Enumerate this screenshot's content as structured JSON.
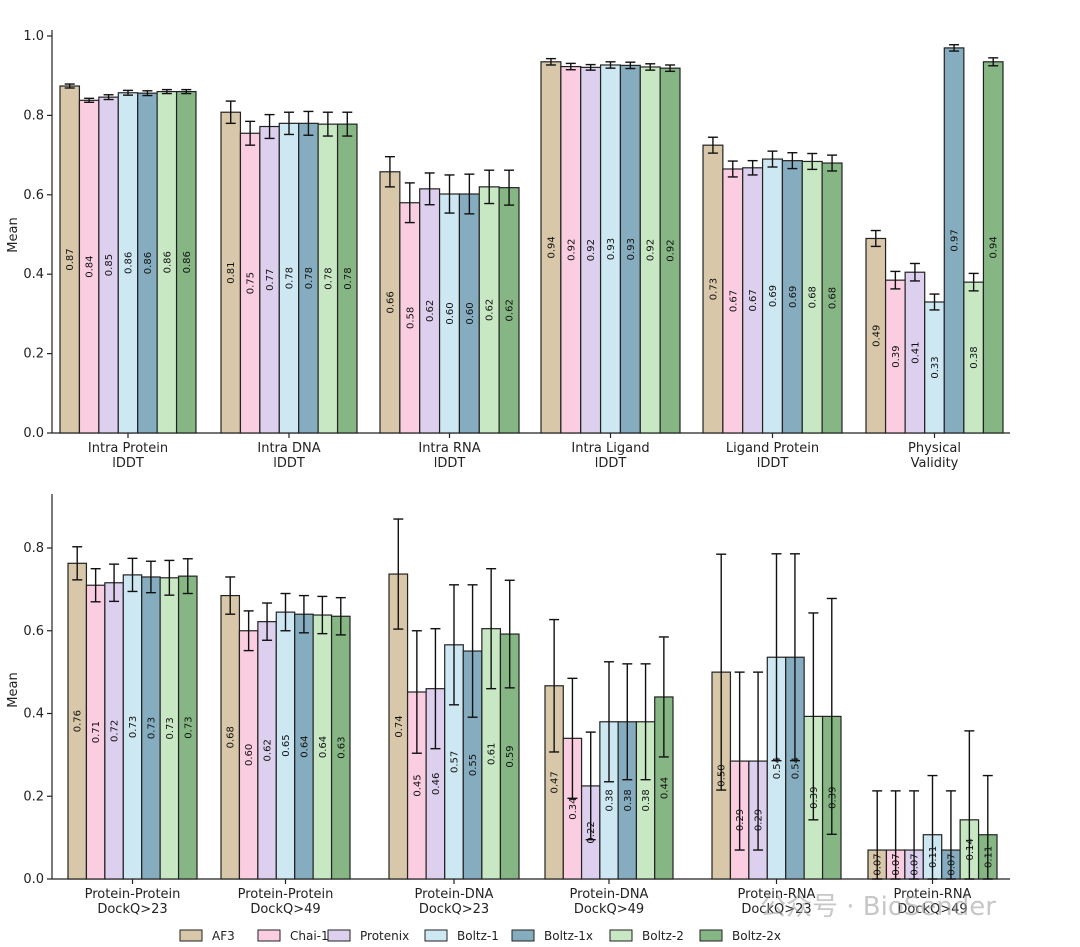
{
  "legend": [
    "AF3",
    "Chai-1",
    "Protenix",
    "Boltz-1",
    "Boltz-1x",
    "Boltz-2",
    "Boltz-2x"
  ],
  "colors": [
    "#d8c7a8",
    "#fbcde0",
    "#ddd0ee",
    "#cde8f2",
    "#86adbf",
    "#c8e8c4",
    "#85b684"
  ],
  "watermark": "公众号 · BioSender",
  "chart_data": [
    {
      "type": "bar",
      "ylabel": "Mean",
      "ylim": [
        0,
        1.0
      ],
      "yticks": [
        "0.0",
        "0.2",
        "0.4",
        "0.6",
        "0.8",
        "1.0"
      ],
      "categories": [
        [
          "Intra Protein",
          "lDDT"
        ],
        [
          "Intra DNA",
          "lDDT"
        ],
        [
          "Intra RNA",
          "lDDT"
        ],
        [
          "Intra Ligand",
          "lDDT"
        ],
        [
          "Ligand Protein",
          "lDDT"
        ],
        [
          "Physical",
          "Validity"
        ]
      ],
      "series": [
        {
          "name": "AF3",
          "values": [
            0.874,
            0.808,
            0.658,
            0.935,
            0.725,
            0.49
          ],
          "labels": [
            "0.87",
            "0.81",
            "0.66",
            "0.94",
            "0.73",
            "0.49"
          ]
        },
        {
          "name": "Chai-1",
          "values": [
            0.838,
            0.755,
            0.58,
            0.923,
            0.665,
            0.385
          ],
          "labels": [
            "0.84",
            "0.75",
            "0.58",
            "0.92",
            "0.67",
            "0.39"
          ]
        },
        {
          "name": "Protenix",
          "values": [
            0.846,
            0.772,
            0.615,
            0.921,
            0.668,
            0.405
          ],
          "labels": [
            "0.85",
            "0.77",
            "0.62",
            "0.92",
            "0.67",
            "0.41"
          ]
        },
        {
          "name": "Boltz-1",
          "values": [
            0.857,
            0.78,
            0.602,
            0.927,
            0.69,
            0.33
          ],
          "labels": [
            "0.86",
            "0.78",
            "0.60",
            "0.93",
            "0.69",
            "0.33"
          ]
        },
        {
          "name": "Boltz-1x",
          "values": [
            0.856,
            0.78,
            0.602,
            0.926,
            0.686,
            0.97
          ],
          "labels": [
            "0.86",
            "0.78",
            "0.60",
            "0.93",
            "0.69",
            "0.97"
          ]
        },
        {
          "name": "Boltz-2",
          "values": [
            0.86,
            0.778,
            0.62,
            0.922,
            0.684,
            0.38
          ],
          "labels": [
            "0.86",
            "0.78",
            "0.62",
            "0.92",
            "0.68",
            "0.38"
          ]
        },
        {
          "name": "Boltz-2x",
          "values": [
            0.86,
            0.778,
            0.618,
            0.919,
            0.68,
            0.935
          ],
          "labels": [
            "0.86",
            "0.78",
            "0.62",
            "0.92",
            "0.68",
            "0.94"
          ]
        }
      ],
      "errors": [
        [
          0.005,
          0.028,
          0.038,
          0.008,
          0.02,
          0.02
        ],
        [
          0.005,
          0.03,
          0.05,
          0.008,
          0.02,
          0.022
        ],
        [
          0.006,
          0.03,
          0.04,
          0.007,
          0.018,
          0.022
        ],
        [
          0.006,
          0.028,
          0.048,
          0.008,
          0.02,
          0.02
        ],
        [
          0.006,
          0.03,
          0.05,
          0.008,
          0.02,
          0.008
        ],
        [
          0.005,
          0.03,
          0.042,
          0.008,
          0.02,
          0.022
        ],
        [
          0.005,
          0.03,
          0.044,
          0.008,
          0.02,
          0.01
        ]
      ]
    },
    {
      "type": "bar",
      "ylabel": "Mean",
      "ylim": [
        0,
        0.9
      ],
      "yticks": [
        "0.0",
        "0.2",
        "0.4",
        "0.6",
        "0.8"
      ],
      "categories": [
        [
          "Protein-Protein",
          "DockQ>23"
        ],
        [
          "Protein-Protein",
          "DockQ>49"
        ],
        [
          "Protein-DNA",
          "DockQ>23"
        ],
        [
          "Protein-DNA",
          "DockQ>49"
        ],
        [
          "Protein-RNA",
          "DockQ>23"
        ],
        [
          "Protein-RNA",
          "DockQ>49"
        ]
      ],
      "series": [
        {
          "name": "AF3",
          "values": [
            0.763,
            0.685,
            0.737,
            0.467,
            0.5,
            0.07
          ],
          "labels": [
            "0.76",
            "0.68",
            "0.74",
            "0.47",
            "0.50",
            "0.07"
          ]
        },
        {
          "name": "Chai-1",
          "values": [
            0.71,
            0.6,
            0.452,
            0.34,
            0.285,
            0.07
          ],
          "labels": [
            "0.71",
            "0.60",
            "0.45",
            "0.34",
            "0.29",
            "0.07"
          ]
        },
        {
          "name": "Protenix",
          "values": [
            0.716,
            0.622,
            0.46,
            0.225,
            0.285,
            0.07
          ],
          "labels": [
            "0.72",
            "0.62",
            "0.46",
            "0.22",
            "0.29",
            "0.07"
          ]
        },
        {
          "name": "Boltz-1",
          "values": [
            0.735,
            0.645,
            0.566,
            0.38,
            0.536,
            0.107
          ],
          "labels": [
            "0.73",
            "0.65",
            "0.57",
            "0.38",
            "0.54",
            "0.11"
          ]
        },
        {
          "name": "Boltz-1x",
          "values": [
            0.73,
            0.64,
            0.551,
            0.38,
            0.536,
            0.07
          ],
          "labels": [
            "0.73",
            "0.64",
            "0.55",
            "0.38",
            "0.54",
            "0.07"
          ]
        },
        {
          "name": "Boltz-2",
          "values": [
            0.728,
            0.638,
            0.605,
            0.38,
            0.393,
            0.143
          ],
          "labels": [
            "0.73",
            "0.64",
            "0.61",
            "0.38",
            "0.39",
            "0.14"
          ]
        },
        {
          "name": "Boltz-2x",
          "values": [
            0.732,
            0.635,
            0.592,
            0.44,
            0.393,
            0.107
          ],
          "labels": [
            "0.73",
            "0.63",
            "0.59",
            "0.44",
            "0.39",
            "0.11"
          ]
        }
      ],
      "errors": [
        [
          0.04,
          0.045,
          0.133,
          0.16,
          0.285,
          0.143
        ],
        [
          0.04,
          0.048,
          0.148,
          0.145,
          0.215,
          0.143
        ],
        [
          0.045,
          0.045,
          0.145,
          0.13,
          0.215,
          0.143
        ],
        [
          0.04,
          0.045,
          0.145,
          0.145,
          0.25,
          0.143
        ],
        [
          0.038,
          0.045,
          0.16,
          0.14,
          0.25,
          0.143
        ],
        [
          0.042,
          0.045,
          0.145,
          0.14,
          0.25,
          0.215
        ],
        [
          0.042,
          0.045,
          0.13,
          0.145,
          0.285,
          0.143
        ]
      ]
    }
  ]
}
